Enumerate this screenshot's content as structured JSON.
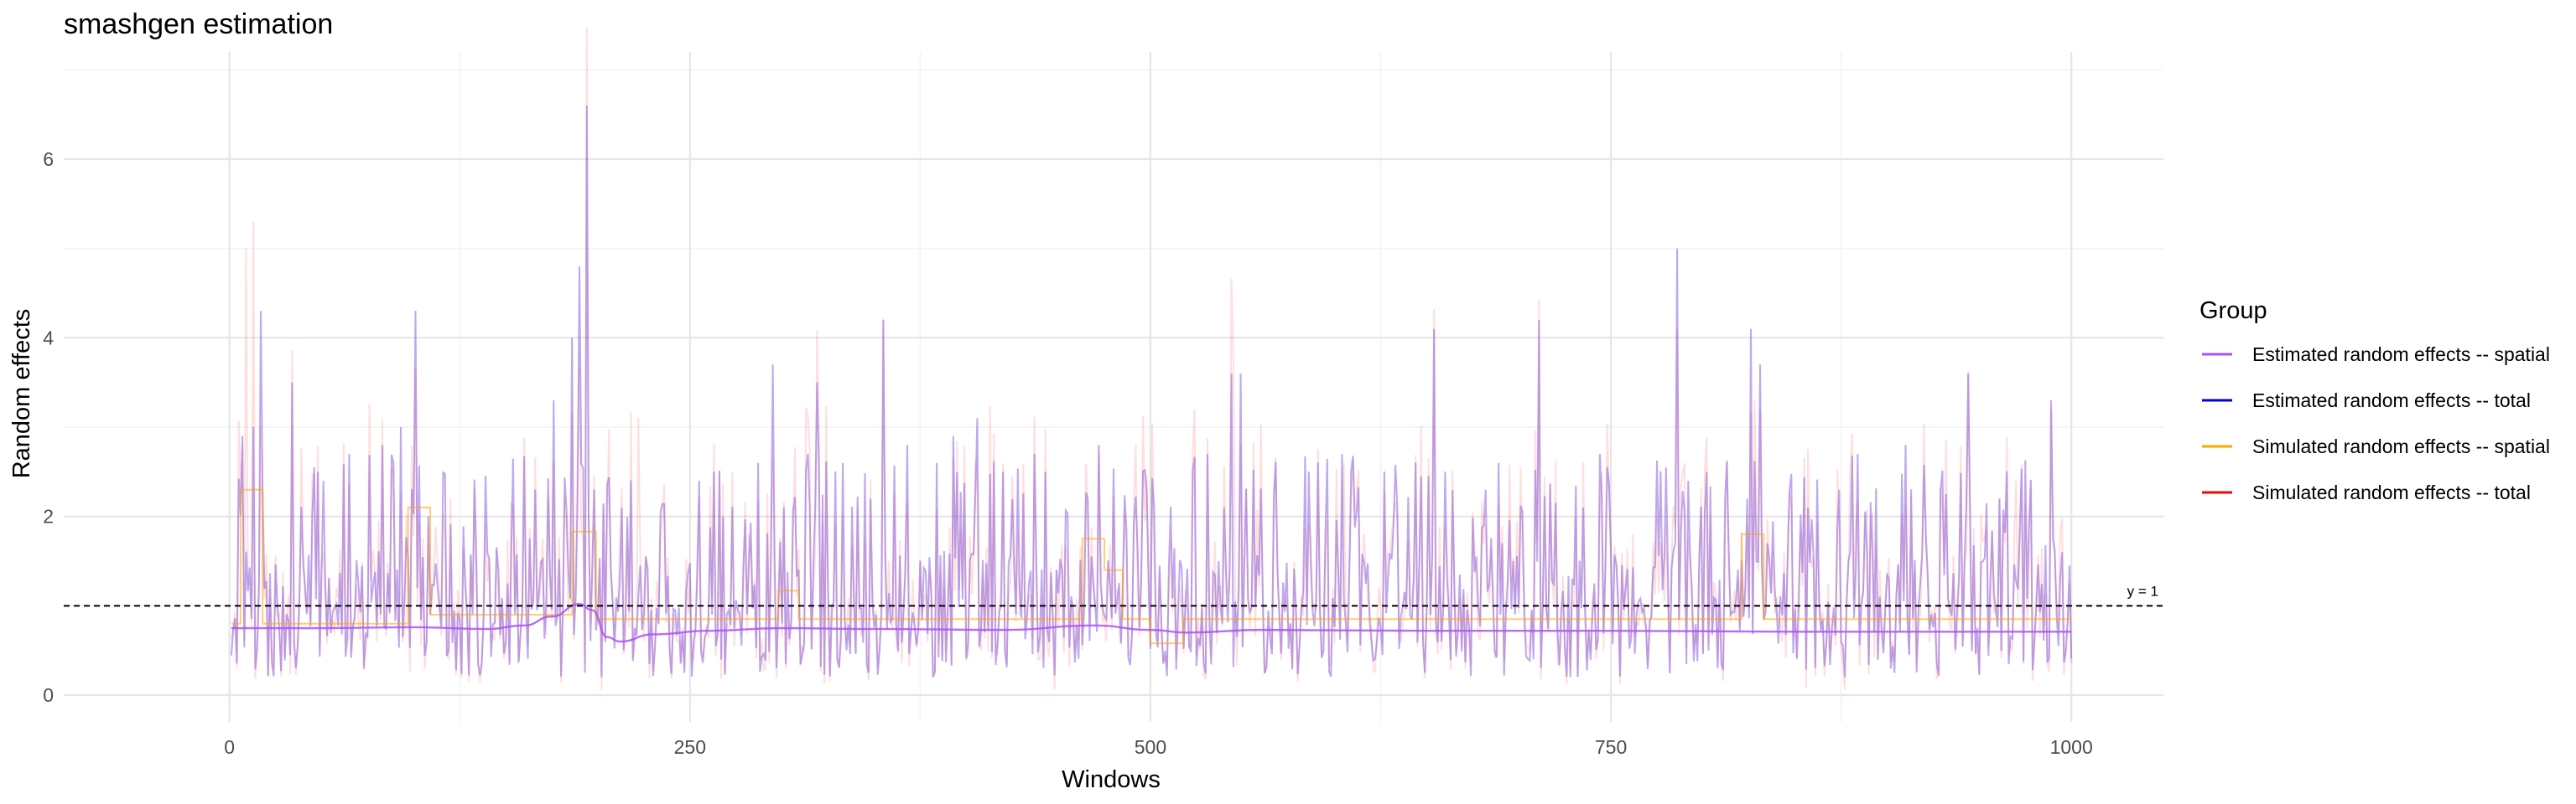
{
  "chart_data": {
    "type": "line",
    "title": "smashgen estimation",
    "xlabel": "Windows",
    "ylabel": "Random effects",
    "xlim": [
      -90,
      1050
    ],
    "ylim": [
      -0.3,
      7.2
    ],
    "x_ticks": [
      0,
      250,
      500,
      750,
      1000
    ],
    "x_tick_labels": [
      "0",
      "250",
      "500",
      "750",
      "1000"
    ],
    "y_ticks": [
      0,
      2,
      4,
      6
    ],
    "y_tick_labels": [
      "0",
      "2",
      "4",
      "6"
    ],
    "grid": true,
    "legend": {
      "title": "Group",
      "placement": "right",
      "entries": [
        {
          "label": "Estimated random effects -- spatial",
          "color": "#a855f7"
        },
        {
          "label": "Estimated random effects -- total",
          "color": "#0000dd"
        },
        {
          "label": "Simulated random effects -- spatial",
          "color": "#ffa500"
        },
        {
          "label": "Simulated random effects -- total",
          "color": "#ff0000"
        }
      ]
    },
    "hline": {
      "y": 1,
      "label": "y = 1",
      "style": "dashed"
    },
    "series_total": {
      "x_range": [
        1,
        1000
      ],
      "base": 0.75,
      "peaks": [
        {
          "x": 7,
          "y": 2.9
        },
        {
          "x": 13,
          "y": 3.0
        },
        {
          "x": 17,
          "y": 4.3
        },
        {
          "x": 34,
          "y": 3.5
        },
        {
          "x": 48,
          "y": 2.5
        },
        {
          "x": 65,
          "y": 2.7
        },
        {
          "x": 83,
          "y": 2.8
        },
        {
          "x": 93,
          "y": 3.0
        },
        {
          "x": 101,
          "y": 4.3
        },
        {
          "x": 108,
          "y": 2.0
        },
        {
          "x": 140,
          "y": 1.6
        },
        {
          "x": 176,
          "y": 3.3
        },
        {
          "x": 186,
          "y": 4.0
        },
        {
          "x": 190,
          "y": 4.8
        },
        {
          "x": 194,
          "y": 6.6
        },
        {
          "x": 198,
          "y": 2.3
        },
        {
          "x": 213,
          "y": 2.1
        },
        {
          "x": 255,
          "y": 2.4
        },
        {
          "x": 268,
          "y": 2.0
        },
        {
          "x": 287,
          "y": 2.6
        },
        {
          "x": 295,
          "y": 3.7
        },
        {
          "x": 314,
          "y": 2.7
        },
        {
          "x": 319,
          "y": 3.5
        },
        {
          "x": 333,
          "y": 2.6
        },
        {
          "x": 355,
          "y": 4.2
        },
        {
          "x": 368,
          "y": 2.8
        },
        {
          "x": 384,
          "y": 2.6
        },
        {
          "x": 393,
          "y": 2.9
        },
        {
          "x": 406,
          "y": 3.1
        },
        {
          "x": 420,
          "y": 2.5
        },
        {
          "x": 437,
          "y": 2.7
        },
        {
          "x": 443,
          "y": 2.5
        },
        {
          "x": 466,
          "y": 2.2
        },
        {
          "x": 472,
          "y": 2.8
        },
        {
          "x": 502,
          "y": 2.1
        },
        {
          "x": 531,
          "y": 2.7
        },
        {
          "x": 544,
          "y": 3.6
        },
        {
          "x": 549,
          "y": 3.6
        },
        {
          "x": 586,
          "y": 2.5
        },
        {
          "x": 604,
          "y": 2.7
        },
        {
          "x": 627,
          "y": 2.5
        },
        {
          "x": 654,
          "y": 4.1
        },
        {
          "x": 660,
          "y": 2.5
        },
        {
          "x": 682,
          "y": 2.3
        },
        {
          "x": 689,
          "y": 2.6
        },
        {
          "x": 711,
          "y": 4.2
        },
        {
          "x": 735,
          "y": 2.1
        },
        {
          "x": 744,
          "y": 2.7
        },
        {
          "x": 786,
          "y": 5.0
        },
        {
          "x": 792,
          "y": 2.4
        },
        {
          "x": 802,
          "y": 2.5
        },
        {
          "x": 812,
          "y": 2.2
        },
        {
          "x": 826,
          "y": 4.1
        },
        {
          "x": 831,
          "y": 3.7
        },
        {
          "x": 847,
          "y": 2.3
        },
        {
          "x": 857,
          "y": 2.1
        },
        {
          "x": 874,
          "y": 2.3
        },
        {
          "x": 884,
          "y": 2.7
        },
        {
          "x": 910,
          "y": 2.8
        },
        {
          "x": 929,
          "y": 2.3
        },
        {
          "x": 944,
          "y": 3.6
        },
        {
          "x": 961,
          "y": 2.2
        },
        {
          "x": 989,
          "y": 3.3
        },
        {
          "x": 995,
          "y": 1.6
        }
      ]
    },
    "series_spatial_estimated": [
      {
        "x": 1,
        "y": 0.75
      },
      {
        "x": 50,
        "y": 0.75
      },
      {
        "x": 100,
        "y": 0.76
      },
      {
        "x": 140,
        "y": 0.74
      },
      {
        "x": 160,
        "y": 0.78
      },
      {
        "x": 175,
        "y": 0.88
      },
      {
        "x": 190,
        "y": 1.02
      },
      {
        "x": 197,
        "y": 0.95
      },
      {
        "x": 205,
        "y": 0.65
      },
      {
        "x": 212,
        "y": 0.6
      },
      {
        "x": 230,
        "y": 0.68
      },
      {
        "x": 260,
        "y": 0.72
      },
      {
        "x": 300,
        "y": 0.75
      },
      {
        "x": 350,
        "y": 0.74
      },
      {
        "x": 420,
        "y": 0.73
      },
      {
        "x": 470,
        "y": 0.78
      },
      {
        "x": 500,
        "y": 0.73
      },
      {
        "x": 520,
        "y": 0.7
      },
      {
        "x": 560,
        "y": 0.73
      },
      {
        "x": 650,
        "y": 0.72
      },
      {
        "x": 750,
        "y": 0.72
      },
      {
        "x": 850,
        "y": 0.71
      },
      {
        "x": 1000,
        "y": 0.71
      }
    ],
    "series_spatial_simulated": [
      {
        "x": 1,
        "y": 0.8
      },
      {
        "x": 6,
        "y": 0.8
      },
      {
        "x": 6,
        "y": 2.3
      },
      {
        "x": 18,
        "y": 2.3
      },
      {
        "x": 18,
        "y": 0.8
      },
      {
        "x": 97,
        "y": 0.8
      },
      {
        "x": 97,
        "y": 2.1
      },
      {
        "x": 109,
        "y": 2.1
      },
      {
        "x": 109,
        "y": 0.9
      },
      {
        "x": 186,
        "y": 0.9
      },
      {
        "x": 186,
        "y": 1.83
      },
      {
        "x": 199,
        "y": 1.83
      },
      {
        "x": 199,
        "y": 0.85
      },
      {
        "x": 298,
        "y": 0.85
      },
      {
        "x": 298,
        "y": 1.17
      },
      {
        "x": 309,
        "y": 1.17
      },
      {
        "x": 309,
        "y": 0.85
      },
      {
        "x": 463,
        "y": 0.85
      },
      {
        "x": 463,
        "y": 1.75
      },
      {
        "x": 475,
        "y": 1.75
      },
      {
        "x": 475,
        "y": 1.4
      },
      {
        "x": 485,
        "y": 1.4
      },
      {
        "x": 485,
        "y": 0.85
      },
      {
        "x": 500,
        "y": 0.85
      },
      {
        "x": 500,
        "y": 0.58
      },
      {
        "x": 518,
        "y": 0.58
      },
      {
        "x": 518,
        "y": 0.85
      },
      {
        "x": 821,
        "y": 0.85
      },
      {
        "x": 821,
        "y": 1.8
      },
      {
        "x": 833,
        "y": 1.8
      },
      {
        "x": 833,
        "y": 0.85
      },
      {
        "x": 1000,
        "y": 0.85
      }
    ],
    "series_total_simulated_extra_peaks": [
      {
        "x": 9,
        "y": 5.0
      },
      {
        "x": 13,
        "y": 5.3
      },
      {
        "x": 120,
        "y": 2.2
      },
      {
        "x": 222,
        "y": 3.1
      },
      {
        "x": 545,
        "y": 3.8
      },
      {
        "x": 605,
        "y": 2.6
      },
      {
        "x": 880,
        "y": 2.5
      },
      {
        "x": 970,
        "y": 2.4
      }
    ]
  }
}
